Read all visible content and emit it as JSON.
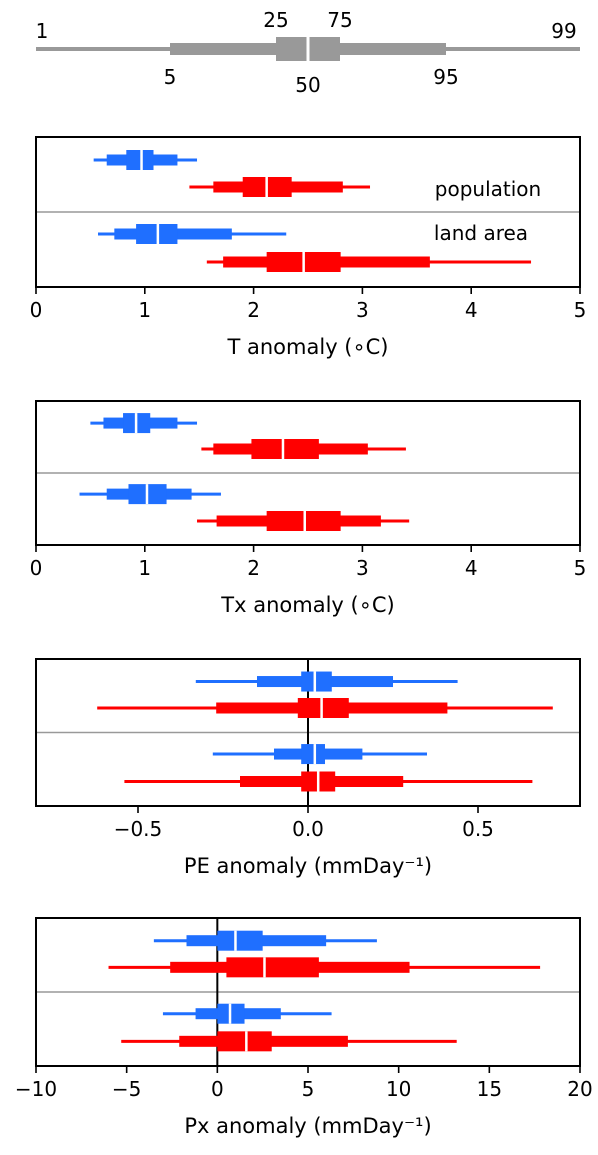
{
  "key": {
    "percentile_labels": [
      "1",
      "5",
      "25",
      "50",
      "75",
      "95",
      "99"
    ],
    "color": "#999999"
  },
  "legend": {
    "upper": "population",
    "lower": "land area"
  },
  "colors": {
    "blue": "#1f6fff",
    "red": "#ff0000",
    "divider": "#999999"
  },
  "chart_data": [
    {
      "type": "box",
      "xlabel": "T anomaly (∘C)",
      "xlim": [
        0,
        5
      ],
      "ticks": [
        "0",
        "1",
        "2",
        "3",
        "4",
        "5"
      ],
      "tick_values": [
        0,
        1,
        2,
        3,
        4,
        5
      ],
      "zero_line": false,
      "series": [
        {
          "group": "population",
          "color": "blue",
          "p1": 0.53,
          "p5": 0.65,
          "p25": 0.83,
          "p50": 0.97,
          "p75": 1.08,
          "p95": 1.3,
          "p99": 1.48
        },
        {
          "group": "population",
          "color": "red",
          "p1": 1.41,
          "p5": 1.63,
          "p25": 1.9,
          "p50": 2.12,
          "p75": 2.35,
          "p95": 2.82,
          "p99": 3.07
        },
        {
          "group": "land area",
          "color": "blue",
          "p1": 0.57,
          "p5": 0.72,
          "p25": 0.92,
          "p50": 1.12,
          "p75": 1.3,
          "p95": 1.8,
          "p99": 2.3
        },
        {
          "group": "land area",
          "color": "red",
          "p1": 1.57,
          "p5": 1.72,
          "p25": 2.12,
          "p50": 2.46,
          "p75": 2.8,
          "p95": 3.62,
          "p99": 4.55
        }
      ]
    },
    {
      "type": "box",
      "xlabel": "Tx anomaly (∘C)",
      "xlim": [
        0,
        5
      ],
      "ticks": [
        "0",
        "1",
        "2",
        "3",
        "4",
        "5"
      ],
      "tick_values": [
        0,
        1,
        2,
        3,
        4,
        5
      ],
      "zero_line": false,
      "series": [
        {
          "group": "population",
          "color": "blue",
          "p1": 0.5,
          "p5": 0.62,
          "p25": 0.8,
          "p50": 0.92,
          "p75": 1.05,
          "p95": 1.3,
          "p99": 1.48
        },
        {
          "group": "population",
          "color": "red",
          "p1": 1.52,
          "p5": 1.63,
          "p25": 1.98,
          "p50": 2.27,
          "p75": 2.6,
          "p95": 3.05,
          "p99": 3.4
        },
        {
          "group": "land area",
          "color": "blue",
          "p1": 0.4,
          "p5": 0.65,
          "p25": 0.85,
          "p50": 1.02,
          "p75": 1.2,
          "p95": 1.43,
          "p99": 1.7
        },
        {
          "group": "land area",
          "color": "red",
          "p1": 1.48,
          "p5": 1.66,
          "p25": 2.12,
          "p50": 2.47,
          "p75": 2.8,
          "p95": 3.17,
          "p99": 3.43
        }
      ]
    },
    {
      "type": "box",
      "xlabel": "PE anomaly (mmDay⁻¹)",
      "xlim": [
        -0.8,
        0.8
      ],
      "ticks": [
        "−0.5",
        "0.0",
        "0.5"
      ],
      "tick_values": [
        -0.5,
        0.0,
        0.5
      ],
      "zero_line": true,
      "series": [
        {
          "group": "population",
          "color": "blue",
          "p1": -0.33,
          "p5": -0.15,
          "p25": -0.02,
          "p50": 0.02,
          "p75": 0.07,
          "p95": 0.25,
          "p99": 0.44
        },
        {
          "group": "population",
          "color": "red",
          "p1": -0.62,
          "p5": -0.27,
          "p25": -0.03,
          "p50": 0.04,
          "p75": 0.12,
          "p95": 0.41,
          "p99": 0.72
        },
        {
          "group": "land area",
          "color": "blue",
          "p1": -0.28,
          "p5": -0.1,
          "p25": -0.02,
          "p50": 0.02,
          "p75": 0.05,
          "p95": 0.16,
          "p99": 0.35
        },
        {
          "group": "land area",
          "color": "red",
          "p1": -0.54,
          "p5": -0.2,
          "p25": -0.02,
          "p50": 0.03,
          "p75": 0.08,
          "p95": 0.28,
          "p99": 0.66
        }
      ]
    },
    {
      "type": "box",
      "xlabel": "Px anomaly (mmDay⁻¹)",
      "xlim": [
        -10,
        20
      ],
      "ticks": [
        "−10",
        "−5",
        "0",
        "5",
        "10",
        "15",
        "20"
      ],
      "tick_values": [
        -10,
        -5,
        0,
        5,
        10,
        15,
        20
      ],
      "zero_line": true,
      "series": [
        {
          "group": "population",
          "color": "blue",
          "p1": -3.5,
          "p5": -1.7,
          "p25": 0.0,
          "p50": 1.0,
          "p75": 2.5,
          "p95": 6.0,
          "p99": 8.8
        },
        {
          "group": "population",
          "color": "red",
          "p1": -6.0,
          "p5": -2.6,
          "p25": 0.5,
          "p50": 2.6,
          "p75": 5.6,
          "p95": 10.6,
          "p99": 17.8
        },
        {
          "group": "land area",
          "color": "blue",
          "p1": -3.0,
          "p5": -1.2,
          "p25": 0.0,
          "p50": 0.7,
          "p75": 1.5,
          "p95": 3.5,
          "p99": 6.3
        },
        {
          "group": "land area",
          "color": "red",
          "p1": -5.3,
          "p5": -2.1,
          "p25": 0.0,
          "p50": 1.6,
          "p75": 3.0,
          "p95": 7.2,
          "p99": 13.2
        }
      ]
    }
  ]
}
